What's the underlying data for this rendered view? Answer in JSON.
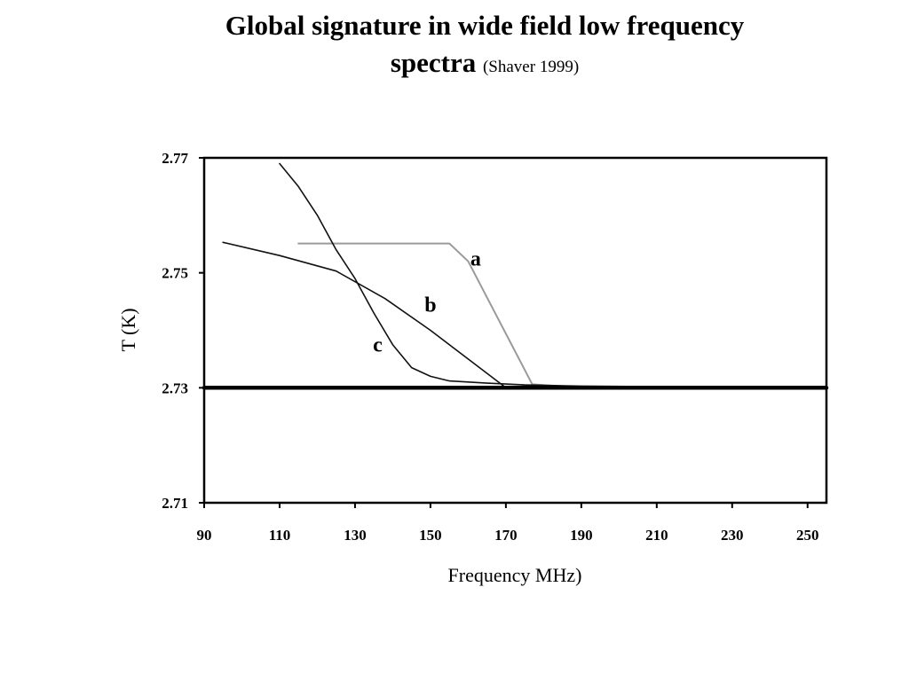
{
  "slide": {
    "title_line1": "Global signature in wide field low frequency",
    "title_line2": "spectra",
    "citation": "(Shaver 1999)"
  },
  "chart_data": {
    "type": "line",
    "xlabel": "Frequency MHz)",
    "ylabel": "T (K)",
    "xlim": [
      90,
      255
    ],
    "ylim": [
      2.71,
      2.77
    ],
    "x_ticks": [
      90,
      110,
      130,
      150,
      170,
      190,
      210,
      230,
      250
    ],
    "x_tick_labels": [
      "90",
      "110",
      "130",
      "150",
      "170",
      "190",
      "210",
      "230",
      "250"
    ],
    "y_ticks": [
      2.77,
      2.75,
      2.73,
      2.71
    ],
    "y_tick_labels": [
      "2.77",
      "2.75",
      "2.73",
      "2.71"
    ],
    "grid": false,
    "colors": {
      "axes": "#000000",
      "curve": "#111111",
      "curve_a": "#9a9a9a",
      "baseline": "#000000"
    },
    "series": [
      {
        "name": "a",
        "x": [
          115,
          155,
          160,
          177,
          190
        ],
        "y": [
          2.7551,
          2.7551,
          2.752,
          2.7306,
          2.73
        ]
      },
      {
        "name": "b",
        "x": [
          95,
          110,
          125,
          138,
          150,
          160,
          170,
          177,
          190,
          250
        ],
        "y": [
          2.7553,
          2.753,
          2.7503,
          2.7455,
          2.74,
          2.735,
          2.73,
          2.7304,
          2.7302,
          2.7302
        ]
      },
      {
        "name": "c",
        "x": [
          110,
          115,
          120,
          125,
          130,
          135,
          140,
          145,
          150,
          155,
          165,
          175,
          190,
          210,
          250
        ],
        "y": [
          2.769,
          2.765,
          2.76,
          2.754,
          2.749,
          2.743,
          2.7375,
          2.7335,
          2.732,
          2.7312,
          2.7308,
          2.7305,
          2.7303,
          2.7302,
          2.7302
        ]
      },
      {
        "name": "",
        "x": [
          90,
          255
        ],
        "y": [
          2.73,
          2.73
        ]
      }
    ],
    "annotations": [
      {
        "text": "a",
        "x": 162,
        "y": 2.7525
      },
      {
        "text": "b",
        "x": 150,
        "y": 2.7445
      },
      {
        "text": "c",
        "x": 136,
        "y": 2.7375
      }
    ]
  }
}
